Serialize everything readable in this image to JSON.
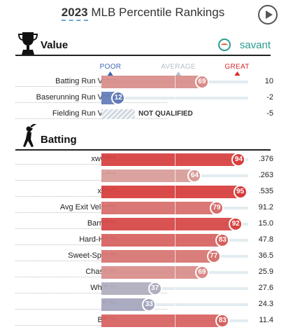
{
  "header": {
    "year": "2023",
    "title": "MLB Percentile Rankings"
  },
  "sections": [
    {
      "title": "Value",
      "icon": "trophy-icon",
      "brand": "savant",
      "scale": {
        "poor": "POOR",
        "average": "AVERAGE",
        "great": "GREAT"
      }
    },
    {
      "title": "Batting",
      "icon": "batter-icon"
    }
  ],
  "colors": {
    "poor": "#3d64b4",
    "average": "#d9c7c2",
    "great": "#d62b2b",
    "poor_label": "#3d64b4",
    "average_label": "#b7c0c8",
    "great_label": "#d62b2b"
  },
  "chart_data": {
    "type": "bar",
    "xlim": [
      0,
      100
    ],
    "value_rows": [
      {
        "label": "Batting Run Value",
        "percentile": 69,
        "value": "10"
      },
      {
        "label": "Baserunning Run Value",
        "percentile": 12,
        "value": "-2"
      },
      {
        "label": "Fielding Run Value",
        "percentile": null,
        "value": "-5",
        "status": "NOT QUALIFIED"
      }
    ],
    "batting_rows": [
      {
        "label": "xwOBA",
        "percentile": 94,
        "value": ".376"
      },
      {
        "label": "xBA",
        "percentile": 64,
        "value": ".263"
      },
      {
        "label": "xSLG",
        "percentile": 95,
        "value": ".535"
      },
      {
        "label": "Avg Exit Velocity",
        "percentile": 79,
        "value": "91.2"
      },
      {
        "label": "Barrel %",
        "percentile": 92,
        "value": "15.0"
      },
      {
        "label": "Hard-Hit %",
        "percentile": 83,
        "value": "47.8"
      },
      {
        "label": "Sweet-Spot %",
        "percentile": 77,
        "value": "36.5"
      },
      {
        "label": "Chase %",
        "percentile": 69,
        "value": "25.9"
      },
      {
        "label": "Whiff %",
        "percentile": 37,
        "value": "27.6"
      },
      {
        "label": "K %",
        "percentile": 33,
        "value": "24.3"
      },
      {
        "label": "BB %",
        "percentile": 83,
        "value": "11.4"
      }
    ]
  }
}
